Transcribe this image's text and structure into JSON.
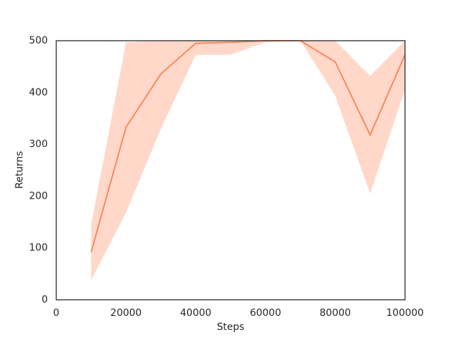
{
  "chart_data": {
    "type": "line",
    "x_label": "Steps",
    "y_label": "Returns",
    "x": [
      10000,
      20000,
      30000,
      40000,
      50000,
      60000,
      70000,
      80000,
      90000,
      100000
    ],
    "series": [
      {
        "color": "#ff7f50",
        "values": [
          92,
          333,
          436,
          495,
          497,
          500,
          500,
          459,
          318,
          473
        ],
        "lower": [
          38,
          168,
          330,
          473,
          473,
          497,
          500,
          394,
          205,
          406
        ],
        "upper": [
          145,
          497,
          500,
          500,
          500,
          500,
          500,
          500,
          432,
          500
        ]
      }
    ],
    "xlim": [
      0,
      100000
    ],
    "xticks": [
      0,
      20000,
      40000,
      60000,
      80000,
      100000
    ],
    "ylim": [
      0,
      500
    ],
    "yticks": [
      0,
      100,
      200,
      300,
      400,
      500
    ],
    "grid": false
  }
}
